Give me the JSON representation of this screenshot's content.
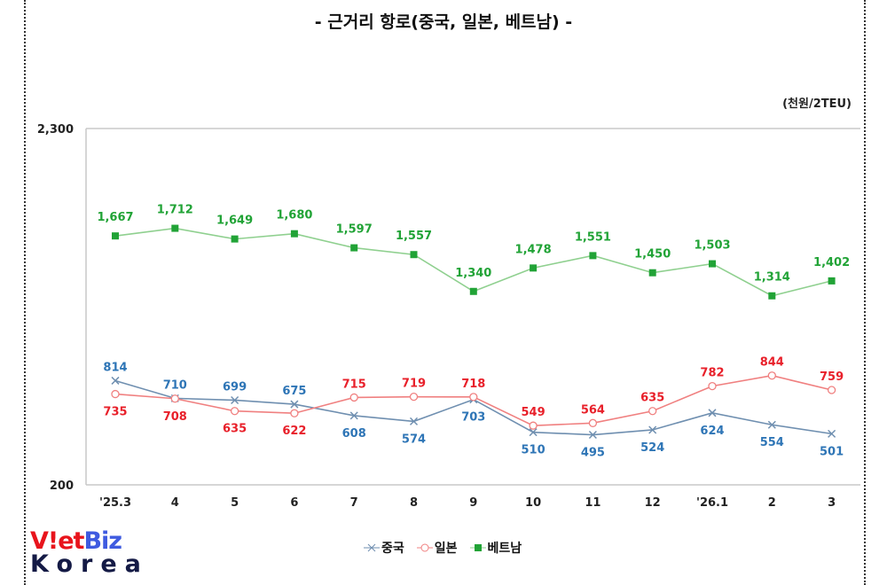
{
  "chart_data": {
    "type": "line",
    "title": "- 근거리 항로(중국, 일본, 베트남) -",
    "unit": "(천원/2TEU)",
    "categories": [
      "'25.3",
      "4",
      "5",
      "6",
      "7",
      "8",
      "9",
      "10",
      "11",
      "12",
      "'26.1",
      "2",
      "3"
    ],
    "ylim": [
      200,
      2300
    ],
    "yticks": [
      "2,300",
      "200"
    ],
    "grid": false,
    "legend_position": "bottom",
    "series": [
      {
        "name": "중국",
        "color": "#6f8fb0",
        "label_color": "#2e75b6",
        "marker": "x",
        "values": [
          814,
          710,
          699,
          675,
          608,
          574,
          703,
          510,
          495,
          524,
          624,
          554,
          501
        ],
        "labels": [
          "814",
          "710",
          "699",
          "675",
          "608",
          "574",
          "703",
          "510",
          "495",
          "524",
          "624",
          "554",
          "501"
        ]
      },
      {
        "name": "일본",
        "color": "#f08080",
        "label_color": "#e8202a",
        "marker": "circle",
        "values": [
          735,
          708,
          635,
          622,
          715,
          719,
          718,
          549,
          564,
          635,
          782,
          844,
          759
        ],
        "labels": [
          "735",
          "708",
          "635",
          "622",
          "715",
          "719",
          "718",
          "549",
          "564",
          "635",
          "782",
          "844",
          "759"
        ]
      },
      {
        "name": "베트남",
        "color": "#8fd08f",
        "label_color": "#21a336",
        "marker": "square",
        "values": [
          1667,
          1712,
          1649,
          1680,
          1597,
          1557,
          1340,
          1478,
          1551,
          1450,
          1503,
          1314,
          1402
        ],
        "labels": [
          "1,667",
          "1,712",
          "1,649",
          "1,680",
          "1,597",
          "1,557",
          "1,340",
          "1,478",
          "1,551",
          "1,450",
          "1,503",
          "1,314",
          "1,402"
        ]
      }
    ]
  },
  "logo": {
    "line1a": "V!et",
    "line1b": "Biz",
    "line2": "Korea"
  }
}
